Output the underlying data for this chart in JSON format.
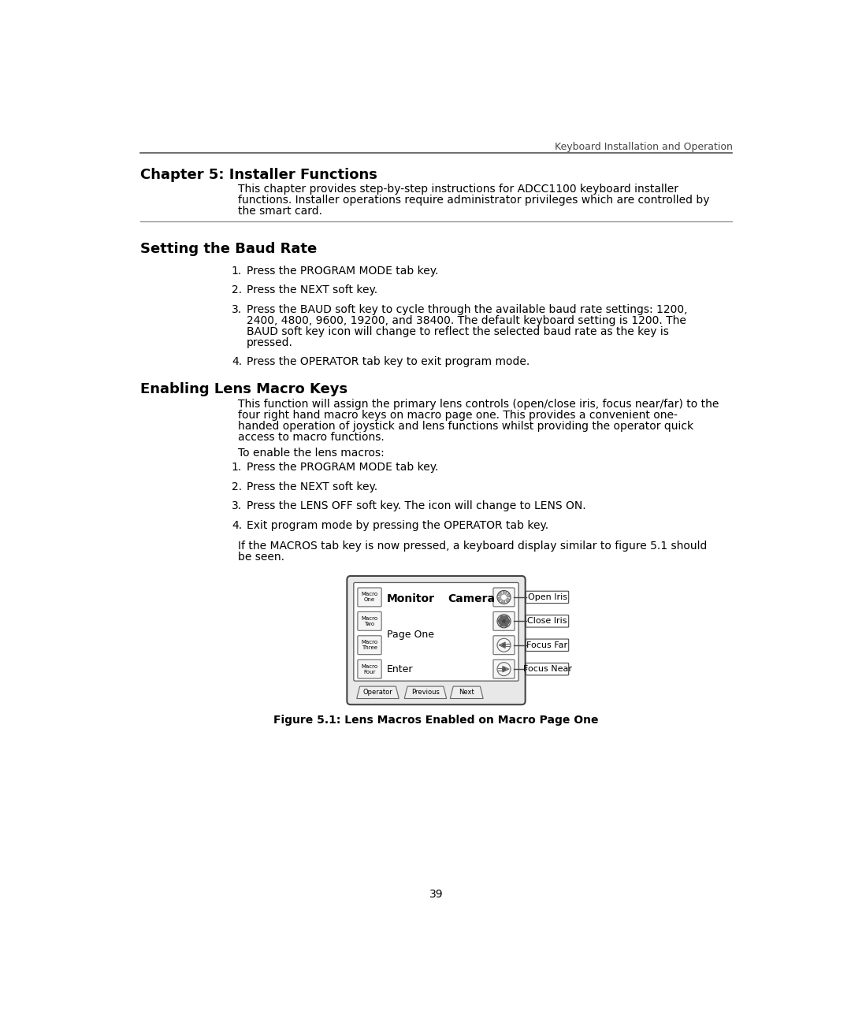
{
  "header_text": "Keyboard Installation and Operation",
  "chapter_title": "Chapter 5: Installer Functions",
  "chapter_body_lines": [
    "This chapter provides step-by-step instructions for ADCC1100 keyboard installer",
    "functions. Installer operations require administrator privileges which are controlled by",
    "the smart card."
  ],
  "section1_title": "Setting the Baud Rate",
  "section1_items": [
    [
      "Press the PROGRAM MODE tab key."
    ],
    [
      "Press the NEXT soft key."
    ],
    [
      "Press the BAUD soft key to cycle through the available baud rate settings: 1200,",
      "2400, 4800, 9600, 19200, and 38400. The default keyboard setting is 1200. The",
      "BAUD soft key icon will change to reflect the selected baud rate as the key is",
      "pressed."
    ],
    [
      "Press the OPERATOR tab key to exit program mode."
    ]
  ],
  "section2_title": "Enabling Lens Macro Keys",
  "section2_intro_lines": [
    "This function will assign the primary lens controls (open/close iris, focus near/far) to the",
    "four right hand macro keys on macro page one. This provides a convenient one-",
    "handed operation of joystick and lens functions whilst providing the operator quick",
    "access to macro functions."
  ],
  "section2_enable": "To enable the lens macros:",
  "section2_items": [
    [
      "Press the PROGRAM MODE tab key."
    ],
    [
      "Press the NEXT soft key."
    ],
    [
      "Press the LENS OFF soft key. The icon will change to LENS ON."
    ],
    [
      "Exit program mode by pressing the OPERATOR tab key."
    ]
  ],
  "section2_footer_lines": [
    "If the MACROS tab key is now pressed, a keyboard display similar to figure 5.1 should",
    "be seen."
  ],
  "figure_caption": "Figure 5.1: Lens Macros Enabled on Macro Page One",
  "page_number": "39",
  "macro_labels": [
    "Macro\nOne",
    "Macro\nTwo",
    "Macro\nThree",
    "Macro\nFour"
  ],
  "bottom_btn_labels": [
    "Operator",
    "Previous",
    "Next"
  ],
  "arrow_labels": [
    "Open Iris",
    "Close Iris",
    "Focus Far",
    "Focus Near"
  ],
  "bg_color": "#ffffff",
  "text_color": "#000000"
}
